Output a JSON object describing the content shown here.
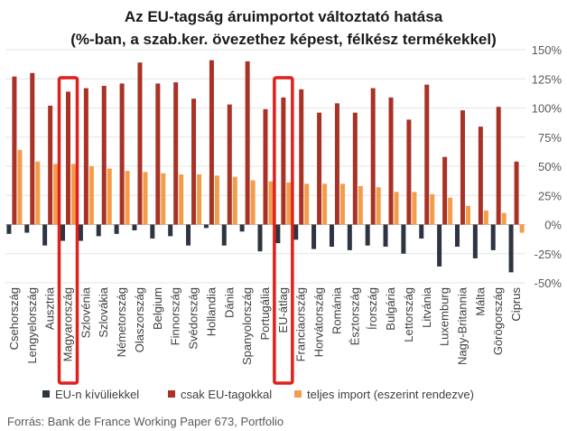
{
  "chart_data": {
    "type": "bar",
    "title_line1": "Az EU-tagság áruimportot változtató hatása",
    "title_line2": "(%-ban, a szab.ker. övezethez képest, félkész termékekkel)",
    "categories": [
      "Csehország",
      "Lengyelország",
      "Ausztria",
      "Magyarország",
      "Szlovénia",
      "Szlovákia",
      "Németország",
      "Olaszország",
      "Belgium",
      "Finnország",
      "Svédország",
      "Hollandia",
      "Dánia",
      "Spanyolország",
      "Portugália",
      "EU-átlag",
      "Franciaország",
      "Horvátország",
      "Románia",
      "Észtország",
      "Írország",
      "Bulgária",
      "Lettország",
      "Litvánia",
      "Luxemburg",
      "Nagy-Britannia",
      "Málta",
      "Görögország",
      "Ciprus"
    ],
    "series": [
      {
        "name": "EU-n kívüliekkel",
        "color": "#2e3440",
        "values": [
          -8,
          -7,
          -18,
          -14,
          -14,
          -10,
          -8,
          -5,
          -12,
          -10,
          -18,
          -3,
          -18,
          -6,
          -23,
          -16,
          -13,
          -21,
          -19,
          -22,
          -18,
          -19,
          -25,
          -12,
          -36,
          -19,
          -29,
          -22,
          -41
        ]
      },
      {
        "name": "csak EU-tagokkal",
        "color": "#a93226",
        "values": [
          127,
          130,
          102,
          114,
          117,
          119,
          121,
          139,
          121,
          122,
          108,
          141,
          103,
          140,
          99,
          109,
          116,
          96,
          104,
          96,
          117,
          109,
          90,
          120,
          58,
          98,
          84,
          101,
          54
        ]
      },
      {
        "name": "teljes import (eszerint rendezve)",
        "color": "#f39c4a",
        "values": [
          64,
          54,
          52,
          52,
          50,
          48,
          46,
          45,
          44,
          43,
          43,
          42,
          41,
          38,
          37,
          36,
          35,
          35,
          35,
          33,
          32,
          28,
          28,
          26,
          23,
          16,
          12,
          10,
          -7
        ]
      }
    ],
    "yticks": [
      "-50%",
      "-25%",
      "0%",
      "25%",
      "50%",
      "75%",
      "100%",
      "125%",
      "150%"
    ],
    "ylim": [
      -50,
      150
    ],
    "highlighted": [
      "Magyarország",
      "EU-átlag"
    ],
    "highlight_color": "#e0201b",
    "legend_position": "bottom",
    "source": "Forrás: Bank de France Working Paper 673, Portfolio"
  }
}
